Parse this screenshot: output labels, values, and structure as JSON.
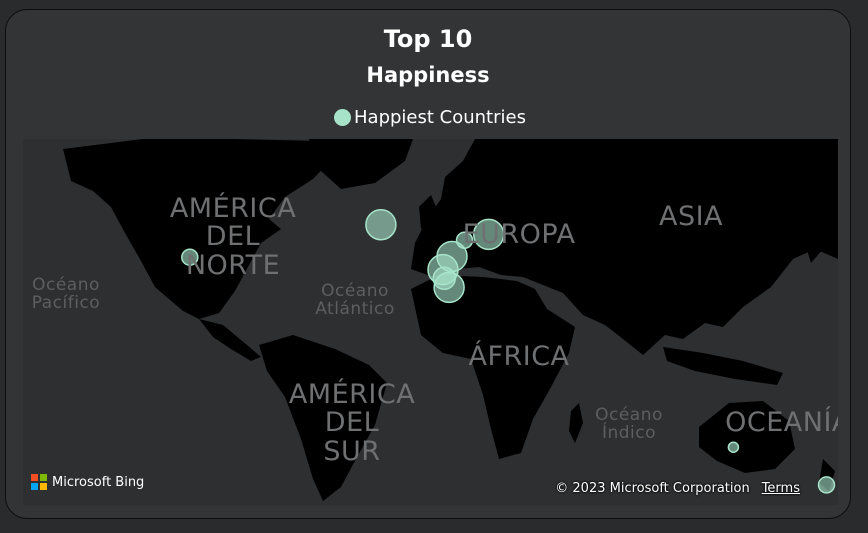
{
  "visual": {
    "title": "Top 10",
    "subtitle": "Happiness"
  },
  "legend": {
    "label": "Happiest Countries",
    "color": "#a6e3c9"
  },
  "map": {
    "continent_labels": [
      "AMÉRICA\nDEL\nNORTE",
      "EUROPA",
      "ASIA",
      "ÁFRICA",
      "AMÉRICA\nDEL\nSUR",
      "OCEANÍA"
    ],
    "ocean_labels": [
      "Océano\nPacífico",
      "Océano\nAtlántico",
      "Océano\nÍndico"
    ],
    "bubble_color": "#a6e3c9",
    "points": [
      {
        "lat": 64.1,
        "lon": -21.9,
        "size": "large"
      },
      {
        "lat": 61.9,
        "lon": 25.7,
        "size": "large"
      },
      {
        "lat": 56.3,
        "lon": 9.5,
        "size": "large"
      },
      {
        "lat": 60.5,
        "lon": 15.0,
        "size": "small"
      },
      {
        "lat": 52.5,
        "lon": 5.5,
        "size": "large"
      },
      {
        "lat": 49.8,
        "lon": 6.1,
        "size": "medium"
      },
      {
        "lat": 46.8,
        "lon": 8.2,
        "size": "large"
      },
      {
        "lat": 56.1,
        "lon": -106.3,
        "size": "small"
      },
      {
        "lat": -25.3,
        "lon": 133.8,
        "size": "tiny"
      },
      {
        "lat": -40.9,
        "lon": 174.9,
        "size": "small"
      }
    ]
  },
  "footer": {
    "brand": "Microsoft Bing",
    "copyright": "© 2023 Microsoft Corporation",
    "terms": "Terms"
  }
}
